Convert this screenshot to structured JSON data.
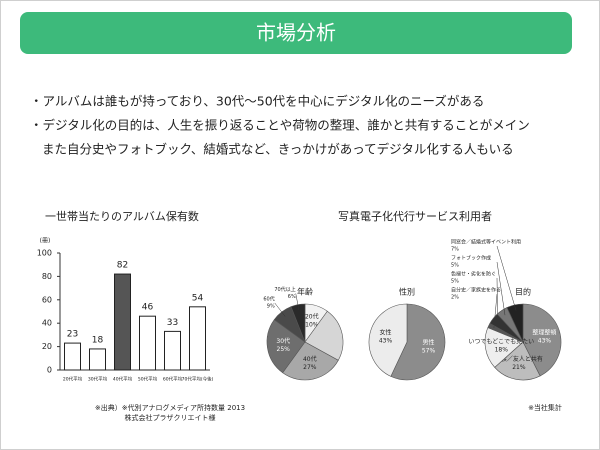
{
  "header": {
    "title": "市場分析"
  },
  "bullets": [
    "・アルバムは誰もが持っており、30代〜50代を中心にデジタル化のニーズがある",
    "・デジタル化の目的は、人生を振り返ることや荷物の整理、誰かと共有することがメイン",
    "また自分史やフォトブック、結婚式など、きっかけがあってデジタル化する人もいる"
  ],
  "survey_title": "写真電子化代行サービス利用者",
  "chart_data": [
    {
      "type": "bar",
      "title": "一世帯当たりのアルバム保有数",
      "ylabel": "(冊)",
      "categories": [
        "20代平均",
        "30代平均",
        "40代平均",
        "50代平均",
        "60代平均",
        "70代平均(今後)"
      ],
      "values": [
        23,
        18,
        82,
        46,
        33,
        54
      ],
      "colors": [
        "#ffffff",
        "#ffffff",
        "#555555",
        "#ffffff",
        "#ffffff",
        "#ffffff"
      ],
      "ylim": [
        0,
        100
      ],
      "yticks": [
        0,
        20,
        40,
        60,
        80,
        100
      ]
    },
    {
      "type": "pie",
      "title": "年齢",
      "categories": [
        "20代",
        null,
        "40代",
        "30代",
        "60代",
        "70代以上"
      ],
      "values": [
        10,
        23,
        27,
        25,
        9,
        6
      ],
      "value_labels": [
        "10%",
        null,
        "27%",
        "25%",
        "9%",
        "6%"
      ],
      "colors": [
        "#f2f2f2",
        "#d6d6d6",
        "#a8a8a8",
        "#6e6e6e",
        "#4a4a4a",
        "#2a2a2a"
      ]
    },
    {
      "type": "pie",
      "title": "性別",
      "categories": [
        "男性",
        "女性"
      ],
      "values": [
        57,
        43
      ],
      "value_labels": [
        "57%",
        "43%"
      ],
      "colors": [
        "#8c8c8c",
        "#ececec"
      ]
    },
    {
      "type": "pie",
      "title": "目的",
      "categories": [
        "整理整頓",
        "家族／友人と共有",
        "いつでもどこでも見たい",
        "自分史／家族史を作る",
        "色褪せ・劣化を防ぐ",
        "フォトブック作成",
        "同窓会／結婚式等イベント利用"
      ],
      "values": [
        43,
        21,
        18,
        2,
        5,
        5,
        7
      ],
      "value_labels": [
        "43%",
        "21%",
        "18%",
        "2%",
        "5%",
        "5%",
        "7%"
      ],
      "colors": [
        "#8c8c8c",
        "#bdbdbd",
        "#eeeeee",
        "#555555",
        "#333333",
        "#777777",
        "#222222"
      ]
    }
  ],
  "sources": {
    "left": [
      "※出典）※代別アナログメディア所持数量 2013",
      "株式会社プラザクリエイト様"
    ],
    "right": "※当社集計"
  }
}
